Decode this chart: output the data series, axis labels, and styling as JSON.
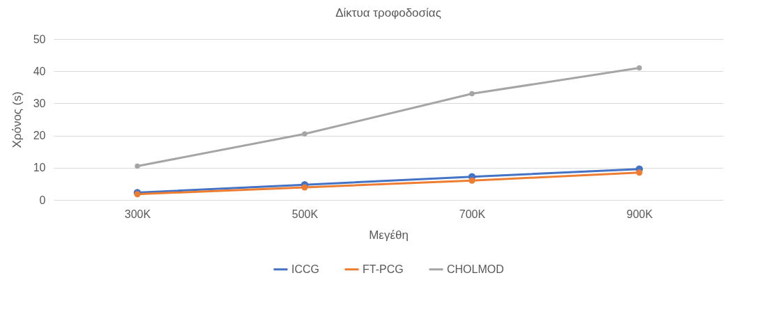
{
  "chart_data": {
    "type": "line",
    "title": "Δίκτυα τροφοδοσίας",
    "xlabel": "Μεγέθη",
    "ylabel": "Χρόνος (s)",
    "categories": [
      "300K",
      "500K",
      "700K",
      "900K"
    ],
    "series": [
      {
        "name": "ICCG",
        "color": "#4472c4",
        "values": [
          2.3,
          4.7,
          7.2,
          9.6
        ]
      },
      {
        "name": "FT-PCG",
        "color": "#ed7d31",
        "values": [
          1.8,
          3.9,
          6,
          8.5
        ]
      },
      {
        "name": "CHOLMOD",
        "color": "#a5a5a5",
        "values": [
          10.5,
          20.5,
          33,
          41
        ]
      }
    ],
    "ylim": [
      0,
      50
    ],
    "yticks": [
      0,
      10,
      20,
      30,
      40,
      50
    ],
    "grid": "y",
    "legend": "bottom",
    "marker": "circle",
    "line_style": "solid"
  }
}
